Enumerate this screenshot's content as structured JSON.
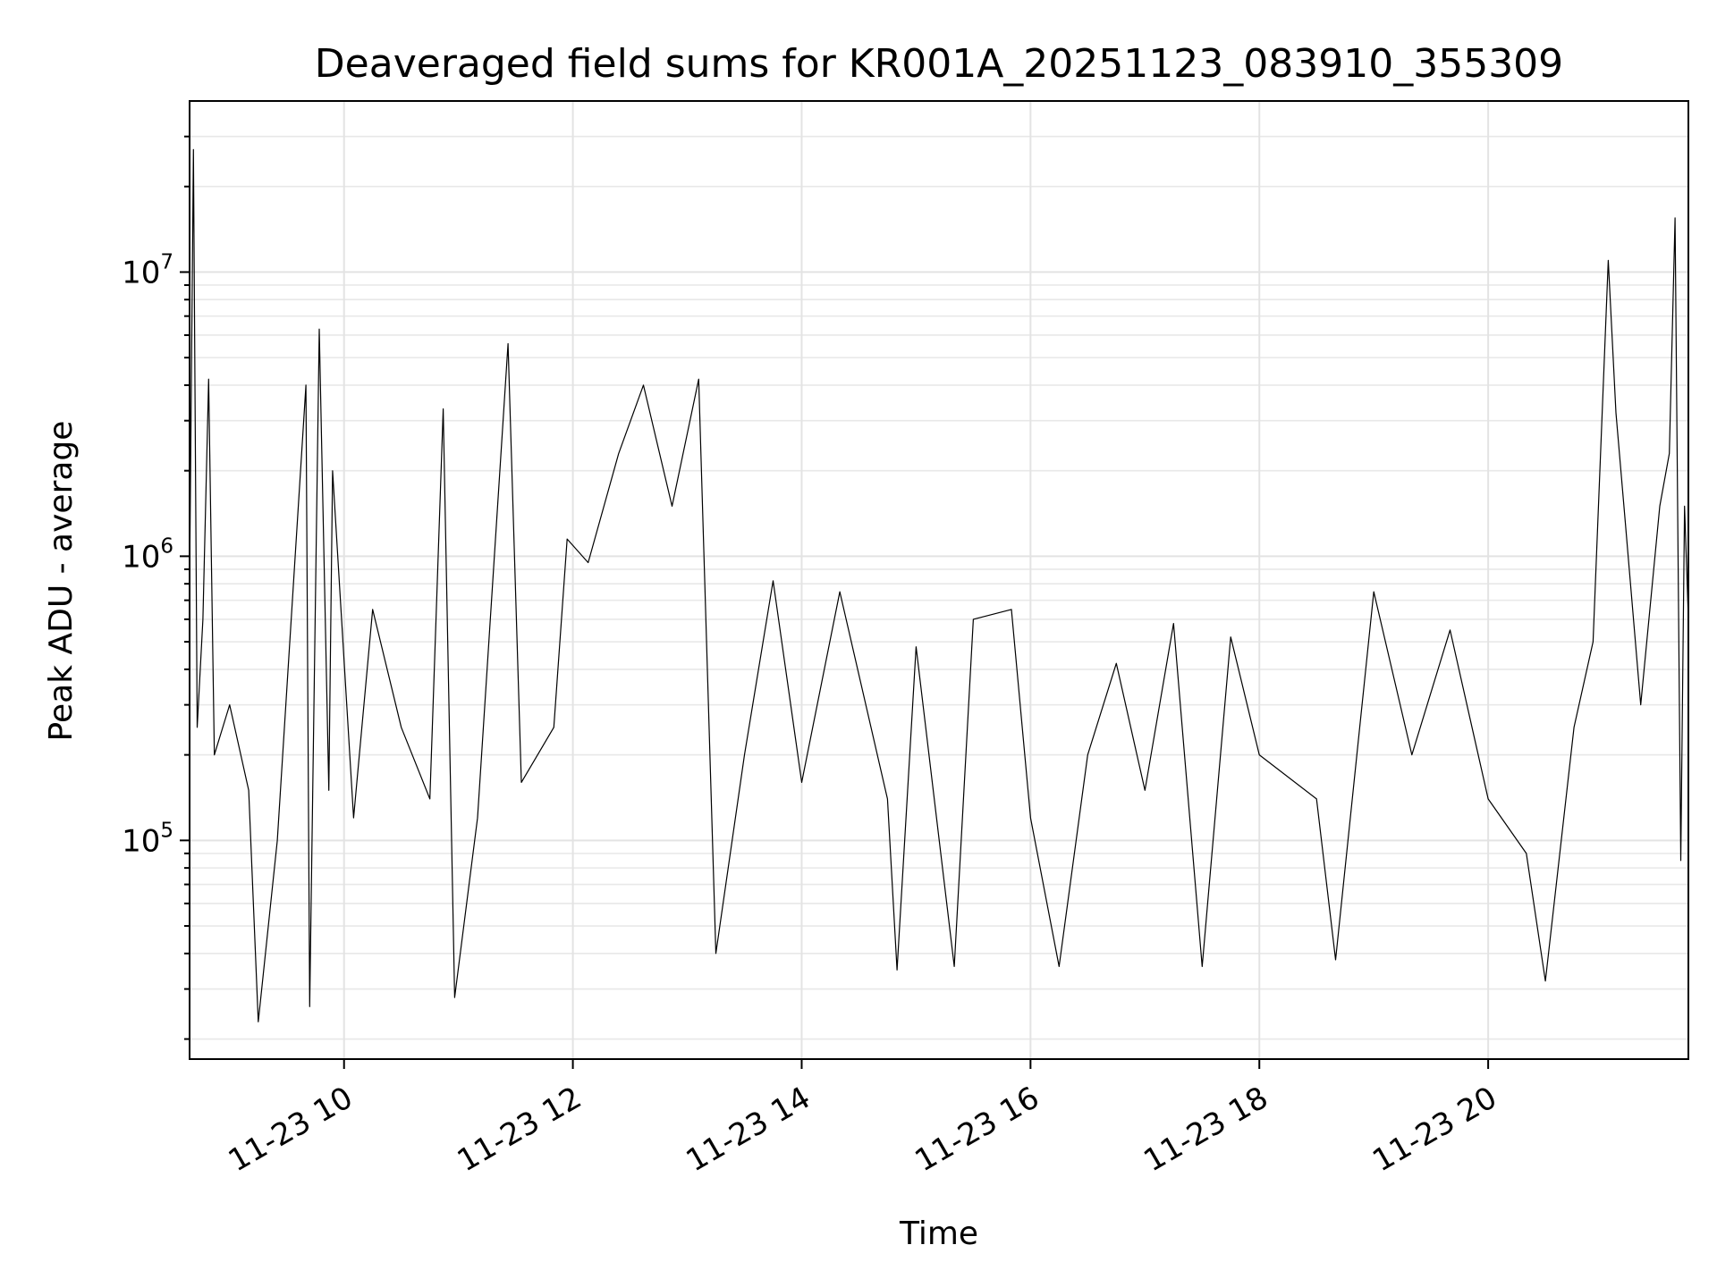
{
  "chart_data": {
    "type": "line",
    "title": "Deaveraged field sums for KR001A_20251123_083910_355309",
    "xlabel": "Time",
    "ylabel": "Peak ADU - average",
    "yscale": "log",
    "grid": true,
    "grid_minor": true,
    "xlim": [
      "2025-11-23 08:39",
      "2025-11-23 21:45"
    ],
    "ylim": [
      17000,
      40000000
    ],
    "x_ticks": [
      {
        "value": "2025-11-23 10:00",
        "label": "11-23 10"
      },
      {
        "value": "2025-11-23 12:00",
        "label": "11-23 12"
      },
      {
        "value": "2025-11-23 14:00",
        "label": "11-23 14"
      },
      {
        "value": "2025-11-23 16:00",
        "label": "11-23 16"
      },
      {
        "value": "2025-11-23 18:00",
        "label": "11-23 18"
      },
      {
        "value": "2025-11-23 20:00",
        "label": "11-23 20"
      }
    ],
    "y_ticks": [
      {
        "value": 100000,
        "base": "10",
        "exp": "5"
      },
      {
        "value": 1000000,
        "base": "10",
        "exp": "6"
      },
      {
        "value": 10000000,
        "base": "10",
        "exp": "7"
      }
    ],
    "series": [
      {
        "color": "#000000",
        "points": [
          [
            "2025-11-23 08:39",
            800000
          ],
          [
            "2025-11-23 08:41",
            27000000
          ],
          [
            "2025-11-23 08:43",
            250000
          ],
          [
            "2025-11-23 08:46",
            600000
          ],
          [
            "2025-11-23 08:49",
            4200000
          ],
          [
            "2025-11-23 08:52",
            200000
          ],
          [
            "2025-11-23 09:00",
            300000
          ],
          [
            "2025-11-23 09:10",
            150000
          ],
          [
            "2025-11-23 09:15",
            23000
          ],
          [
            "2025-11-23 09:25",
            100000
          ],
          [
            "2025-11-23 09:40",
            4000000
          ],
          [
            "2025-11-23 09:42",
            26000
          ],
          [
            "2025-11-23 09:47",
            6300000
          ],
          [
            "2025-11-23 09:52",
            150000
          ],
          [
            "2025-11-23 09:54",
            2000000
          ],
          [
            "2025-11-23 10:05",
            120000
          ],
          [
            "2025-11-23 10:15",
            650000
          ],
          [
            "2025-11-23 10:30",
            250000
          ],
          [
            "2025-11-23 10:45",
            140000
          ],
          [
            "2025-11-23 10:52",
            3300000
          ],
          [
            "2025-11-23 10:58",
            28000
          ],
          [
            "2025-11-23 11:10",
            120000
          ],
          [
            "2025-11-23 11:26",
            5600000
          ],
          [
            "2025-11-23 11:33",
            160000
          ],
          [
            "2025-11-23 11:50",
            250000
          ],
          [
            "2025-11-23 11:57",
            1150000
          ],
          [
            "2025-11-23 12:08",
            950000
          ],
          [
            "2025-11-23 12:24",
            2300000
          ],
          [
            "2025-11-23 12:37",
            4000000
          ],
          [
            "2025-11-23 12:52",
            1500000
          ],
          [
            "2025-11-23 13:06",
            4200000
          ],
          [
            "2025-11-23 13:15",
            40000
          ],
          [
            "2025-11-23 13:30",
            200000
          ],
          [
            "2025-11-23 13:45",
            820000
          ],
          [
            "2025-11-23 14:00",
            160000
          ],
          [
            "2025-11-23 14:20",
            750000
          ],
          [
            "2025-11-23 14:45",
            140000
          ],
          [
            "2025-11-23 14:50",
            35000
          ],
          [
            "2025-11-23 15:00",
            480000
          ],
          [
            "2025-11-23 15:20",
            36000
          ],
          [
            "2025-11-23 15:30",
            600000
          ],
          [
            "2025-11-23 15:50",
            650000
          ],
          [
            "2025-11-23 16:00",
            120000
          ],
          [
            "2025-11-23 16:15",
            36000
          ],
          [
            "2025-11-23 16:30",
            200000
          ],
          [
            "2025-11-23 16:45",
            420000
          ],
          [
            "2025-11-23 17:00",
            150000
          ],
          [
            "2025-11-23 17:15",
            580000
          ],
          [
            "2025-11-23 17:30",
            36000
          ],
          [
            "2025-11-23 17:45",
            520000
          ],
          [
            "2025-11-23 18:00",
            200000
          ],
          [
            "2025-11-23 18:30",
            140000
          ],
          [
            "2025-11-23 18:40",
            38000
          ],
          [
            "2025-11-23 19:00",
            750000
          ],
          [
            "2025-11-23 19:20",
            200000
          ],
          [
            "2025-11-23 19:40",
            550000
          ],
          [
            "2025-11-23 20:00",
            140000
          ],
          [
            "2025-11-23 20:20",
            90000
          ],
          [
            "2025-11-23 20:30",
            32000
          ],
          [
            "2025-11-23 20:45",
            250000
          ],
          [
            "2025-11-23 20:55",
            500000
          ],
          [
            "2025-11-23 21:03",
            11000000
          ],
          [
            "2025-11-23 21:07",
            3200000
          ],
          [
            "2025-11-23 21:12",
            1300000
          ],
          [
            "2025-11-23 21:20",
            300000
          ],
          [
            "2025-11-23 21:30",
            1500000
          ],
          [
            "2025-11-23 21:35",
            2300000
          ],
          [
            "2025-11-23 21:38",
            15500000
          ],
          [
            "2025-11-23 21:41",
            85000
          ],
          [
            "2025-11-23 21:43",
            1500000
          ],
          [
            "2025-11-23 21:45",
            600000
          ]
        ]
      }
    ]
  }
}
